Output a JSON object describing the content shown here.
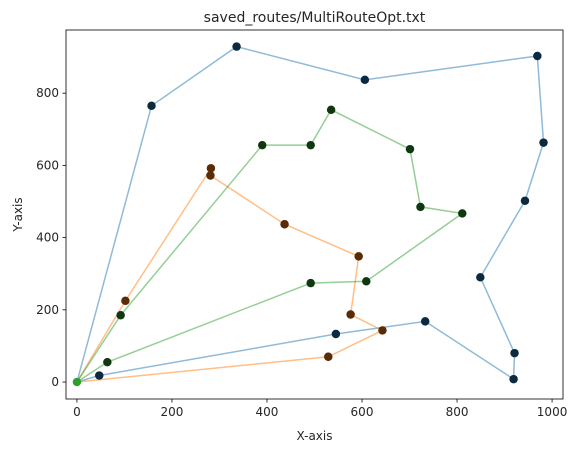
{
  "chart_data": {
    "type": "line",
    "title": "saved_routes/MultiRouteOpt.txt",
    "xlabel": "X-axis",
    "ylabel": "Y-axis",
    "xlim": [
      -23,
      1023
    ],
    "ylim": [
      -47,
      975
    ],
    "xticks": [
      0,
      200,
      400,
      600,
      800,
      1000
    ],
    "yticks": [
      0,
      200,
      400,
      600,
      800
    ],
    "grid": false,
    "colors": {
      "route_blue": "#1f77b4",
      "route_orange": "#ff7f0e",
      "route_green": "#2ca02c",
      "point": "#000000",
      "depot": "#2ca02c"
    },
    "series": [
      {
        "color_key": "route_blue",
        "points": [
          [
            0,
            0
          ],
          [
            157,
            765
          ],
          [
            336,
            929
          ],
          [
            606,
            837
          ],
          [
            969,
            903
          ],
          [
            982,
            663
          ],
          [
            943,
            502
          ],
          [
            849,
            290
          ],
          [
            921,
            80
          ],
          [
            919,
            8
          ],
          [
            733,
            168
          ],
          [
            545,
            133
          ],
          [
            47,
            18
          ],
          [
            0,
            0
          ]
        ]
      },
      {
        "color_key": "route_orange",
        "points": [
          [
            0,
            0
          ],
          [
            102,
            225
          ],
          [
            282,
            592
          ],
          [
            281,
            572
          ],
          [
            437,
            437
          ],
          [
            593,
            348
          ],
          [
            576,
            187
          ],
          [
            643,
            143
          ],
          [
            529,
            70
          ],
          [
            0,
            0
          ]
        ]
      },
      {
        "color_key": "route_green",
        "points": [
          [
            0,
            0
          ],
          [
            92,
            185
          ],
          [
            390,
            656
          ],
          [
            492,
            656
          ],
          [
            535,
            754
          ],
          [
            701,
            645
          ],
          [
            723,
            485
          ],
          [
            811,
            467
          ],
          [
            609,
            279
          ],
          [
            492,
            274
          ],
          [
            64,
            55
          ],
          [
            0,
            0
          ]
        ]
      }
    ],
    "depot": [
      0,
      0
    ]
  }
}
